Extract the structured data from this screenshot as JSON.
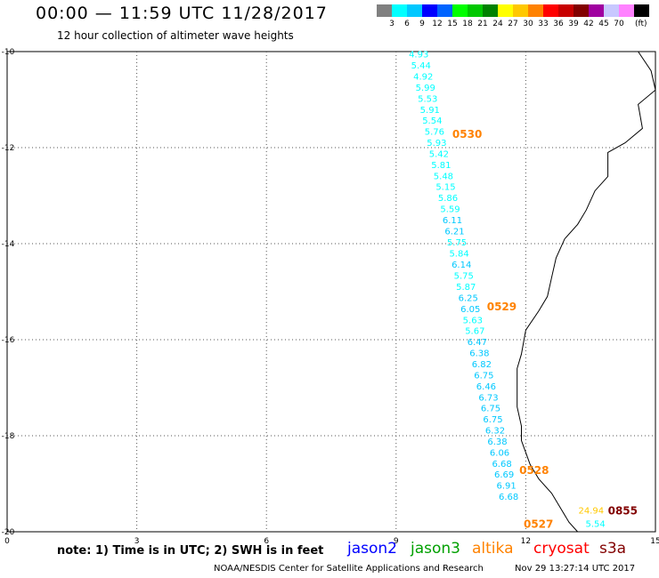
{
  "header": {
    "title": "00:00 — 11:59 UTC 11/28/2017",
    "subtitle": "12 hour collection of altimeter wave heights"
  },
  "legend": {
    "unit": "(ft)",
    "colors": [
      "#808080",
      "#00ffff",
      "#00c8ff",
      "#0000ff",
      "#0064ff",
      "#00ff00",
      "#00c800",
      "#008200",
      "#ffff00",
      "#ffc800",
      "#ff8200",
      "#ff0000",
      "#c80000",
      "#820000",
      "#a000a0",
      "#c8c8ff",
      "#ff82ff",
      "#000000"
    ],
    "labels": [
      "3",
      "6",
      "9",
      "12",
      "15",
      "18",
      "21",
      "24",
      "27",
      "30",
      "33",
      "36",
      "39",
      "42",
      "45",
      "70"
    ]
  },
  "map": {
    "lon_range": [
      0,
      15
    ],
    "lat_range": [
      -20,
      -10
    ],
    "x_ticks": [
      "0",
      "3",
      "6",
      "9",
      "12",
      "15"
    ],
    "y_ticks": [
      "-10",
      "-12",
      "-14",
      "-16",
      "-18",
      "-20"
    ],
    "grid": "dotted",
    "coastline": [
      [
        14.6,
        -10.0
      ],
      [
        14.9,
        -10.4
      ],
      [
        15.0,
        -10.8
      ],
      [
        14.6,
        -11.1
      ],
      [
        14.7,
        -11.6
      ],
      [
        14.3,
        -11.9
      ],
      [
        13.9,
        -12.1
      ],
      [
        13.9,
        -12.6
      ],
      [
        13.6,
        -12.9
      ],
      [
        13.4,
        -13.3
      ],
      [
        13.2,
        -13.6
      ],
      [
        12.9,
        -13.9
      ],
      [
        12.7,
        -14.3
      ],
      [
        12.6,
        -14.7
      ],
      [
        12.5,
        -15.1
      ],
      [
        12.3,
        -15.4
      ],
      [
        12.0,
        -15.8
      ],
      [
        11.9,
        -16.3
      ],
      [
        11.8,
        -16.6
      ],
      [
        11.8,
        -17.0
      ],
      [
        11.8,
        -17.4
      ],
      [
        11.9,
        -17.8
      ],
      [
        11.9,
        -18.1
      ],
      [
        12.1,
        -18.6
      ],
      [
        12.3,
        -18.9
      ],
      [
        12.6,
        -19.2
      ],
      [
        12.8,
        -19.5
      ],
      [
        13.0,
        -19.8
      ],
      [
        13.2,
        -20.0
      ]
    ],
    "tracks": [
      {
        "satellite": "altika",
        "time": "0530",
        "time_color": "#ff8200",
        "time_lon": 10.3,
        "time_lat": -11.7,
        "points": [
          {
            "lat": -10.05,
            "swh": "4.93",
            "color": "#00ffff"
          },
          {
            "lat": -10.28,
            "swh": "5.44",
            "color": "#00ffff"
          },
          {
            "lat": -10.51,
            "swh": "4.92",
            "color": "#00ffff"
          },
          {
            "lat": -10.74,
            "swh": "5.99",
            "color": "#00ffff"
          },
          {
            "lat": -10.97,
            "swh": "5.53",
            "color": "#00ffff"
          },
          {
            "lat": -11.2,
            "swh": "5.91",
            "color": "#00ffff"
          },
          {
            "lat": -11.43,
            "swh": "5.54",
            "color": "#00ffff"
          },
          {
            "lat": -11.66,
            "swh": "5.76",
            "color": "#00ffff"
          },
          {
            "lat": -11.89,
            "swh": "5.93",
            "color": "#00ffff"
          },
          {
            "lat": -12.12,
            "swh": "5.42",
            "color": "#00ffff"
          },
          {
            "lat": -12.35,
            "swh": "5.81",
            "color": "#00ffff"
          },
          {
            "lat": -12.58,
            "swh": "5.48",
            "color": "#00ffff"
          },
          {
            "lat": -12.81,
            "swh": "5.15",
            "color": "#00ffff"
          },
          {
            "lat": -13.04,
            "swh": "5.86",
            "color": "#00ffff"
          },
          {
            "lat": -13.27,
            "swh": "5.59",
            "color": "#00ffff"
          },
          {
            "lat": -13.5,
            "swh": "6.11",
            "color": "#00c8ff"
          },
          {
            "lat": -13.73,
            "swh": "6.21",
            "color": "#00c8ff"
          },
          {
            "lat": -13.96,
            "swh": "5.75",
            "color": "#00ffff"
          },
          {
            "lat": -14.19,
            "swh": "5.84",
            "color": "#00ffff"
          }
        ]
      },
      {
        "satellite": "altika",
        "time": "0529",
        "time_color": "#ff8200",
        "time_lon": 11.1,
        "time_lat": -15.3,
        "points": [
          {
            "lat": -14.43,
            "swh": "6.14",
            "color": "#00c8ff"
          },
          {
            "lat": -14.66,
            "swh": "5.75",
            "color": "#00ffff"
          },
          {
            "lat": -14.89,
            "swh": "5.87",
            "color": "#00ffff"
          },
          {
            "lat": -15.12,
            "swh": "6.25",
            "color": "#00c8ff"
          },
          {
            "lat": -15.35,
            "swh": "6.05",
            "color": "#00c8ff"
          },
          {
            "lat": -15.58,
            "swh": "5.63",
            "color": "#00ffff"
          },
          {
            "lat": -15.81,
            "swh": "5.67",
            "color": "#00ffff"
          },
          {
            "lat": -16.04,
            "swh": "6.47",
            "color": "#00c8ff"
          },
          {
            "lat": -16.27,
            "swh": "6.38",
            "color": "#00c8ff"
          },
          {
            "lat": -16.5,
            "swh": "6.82",
            "color": "#00c8ff"
          },
          {
            "lat": -16.73,
            "swh": "6.75",
            "color": "#00c8ff"
          },
          {
            "lat": -16.96,
            "swh": "6.46",
            "color": "#00c8ff"
          },
          {
            "lat": -17.19,
            "swh": "6.73",
            "color": "#00c8ff"
          },
          {
            "lat": -17.42,
            "swh": "6.75",
            "color": "#00c8ff"
          },
          {
            "lat": -17.65,
            "swh": "6.75",
            "color": "#00c8ff"
          }
        ]
      },
      {
        "satellite": "altika",
        "time": "0528",
        "time_color": "#ff8200",
        "time_lon": 11.85,
        "time_lat": -18.7,
        "points": [
          {
            "lat": -17.88,
            "swh": "6.32",
            "color": "#00c8ff"
          },
          {
            "lat": -18.11,
            "swh": "6.38",
            "color": "#00c8ff"
          },
          {
            "lat": -18.34,
            "swh": "6.06",
            "color": "#00c8ff"
          },
          {
            "lat": -18.57,
            "swh": "6.68",
            "color": "#00c8ff"
          },
          {
            "lat": -18.8,
            "swh": "6.69",
            "color": "#00c8ff"
          },
          {
            "lat": -19.03,
            "swh": "6.91",
            "color": "#00c8ff"
          },
          {
            "lat": -19.26,
            "swh": "6.68",
            "color": "#00c8ff"
          }
        ]
      },
      {
        "satellite": "altika",
        "time": "0527",
        "time_color": "#ff8200",
        "time_lon": 11.95,
        "time_lat": -19.82,
        "points": []
      },
      {
        "satellite": "s3a",
        "time": "0855",
        "time_color": "#820000",
        "time_lon": 13.9,
        "time_lat": -19.55,
        "points": [
          {
            "lat": -19.55,
            "lon": 13.1,
            "swh": "24.94",
            "color": "#ffc800"
          },
          {
            "lat": -19.82,
            "lon": 13.2,
            "swh": "5.54",
            "color": "#00ffff"
          }
        ]
      }
    ],
    "altika_track_start_lon": 9.1,
    "altika_track_end_lon": 11.2
  },
  "note": "note: 1) Time is in UTC; 2) SWH is in feet",
  "satellites": [
    {
      "name": "jason2",
      "color": "#0000ff"
    },
    {
      "name": "jason3",
      "color": "#00a000"
    },
    {
      "name": "altika",
      "color": "#ff8200"
    },
    {
      "name": "cryosat",
      "color": "#ff0000"
    },
    {
      "name": "s3a",
      "color": "#820000"
    }
  ],
  "footer": {
    "credit": "NOAA/NESDIS Center for Satellite Applications and Research",
    "generated": "Nov 29 13:27:14 UTC 2017"
  }
}
